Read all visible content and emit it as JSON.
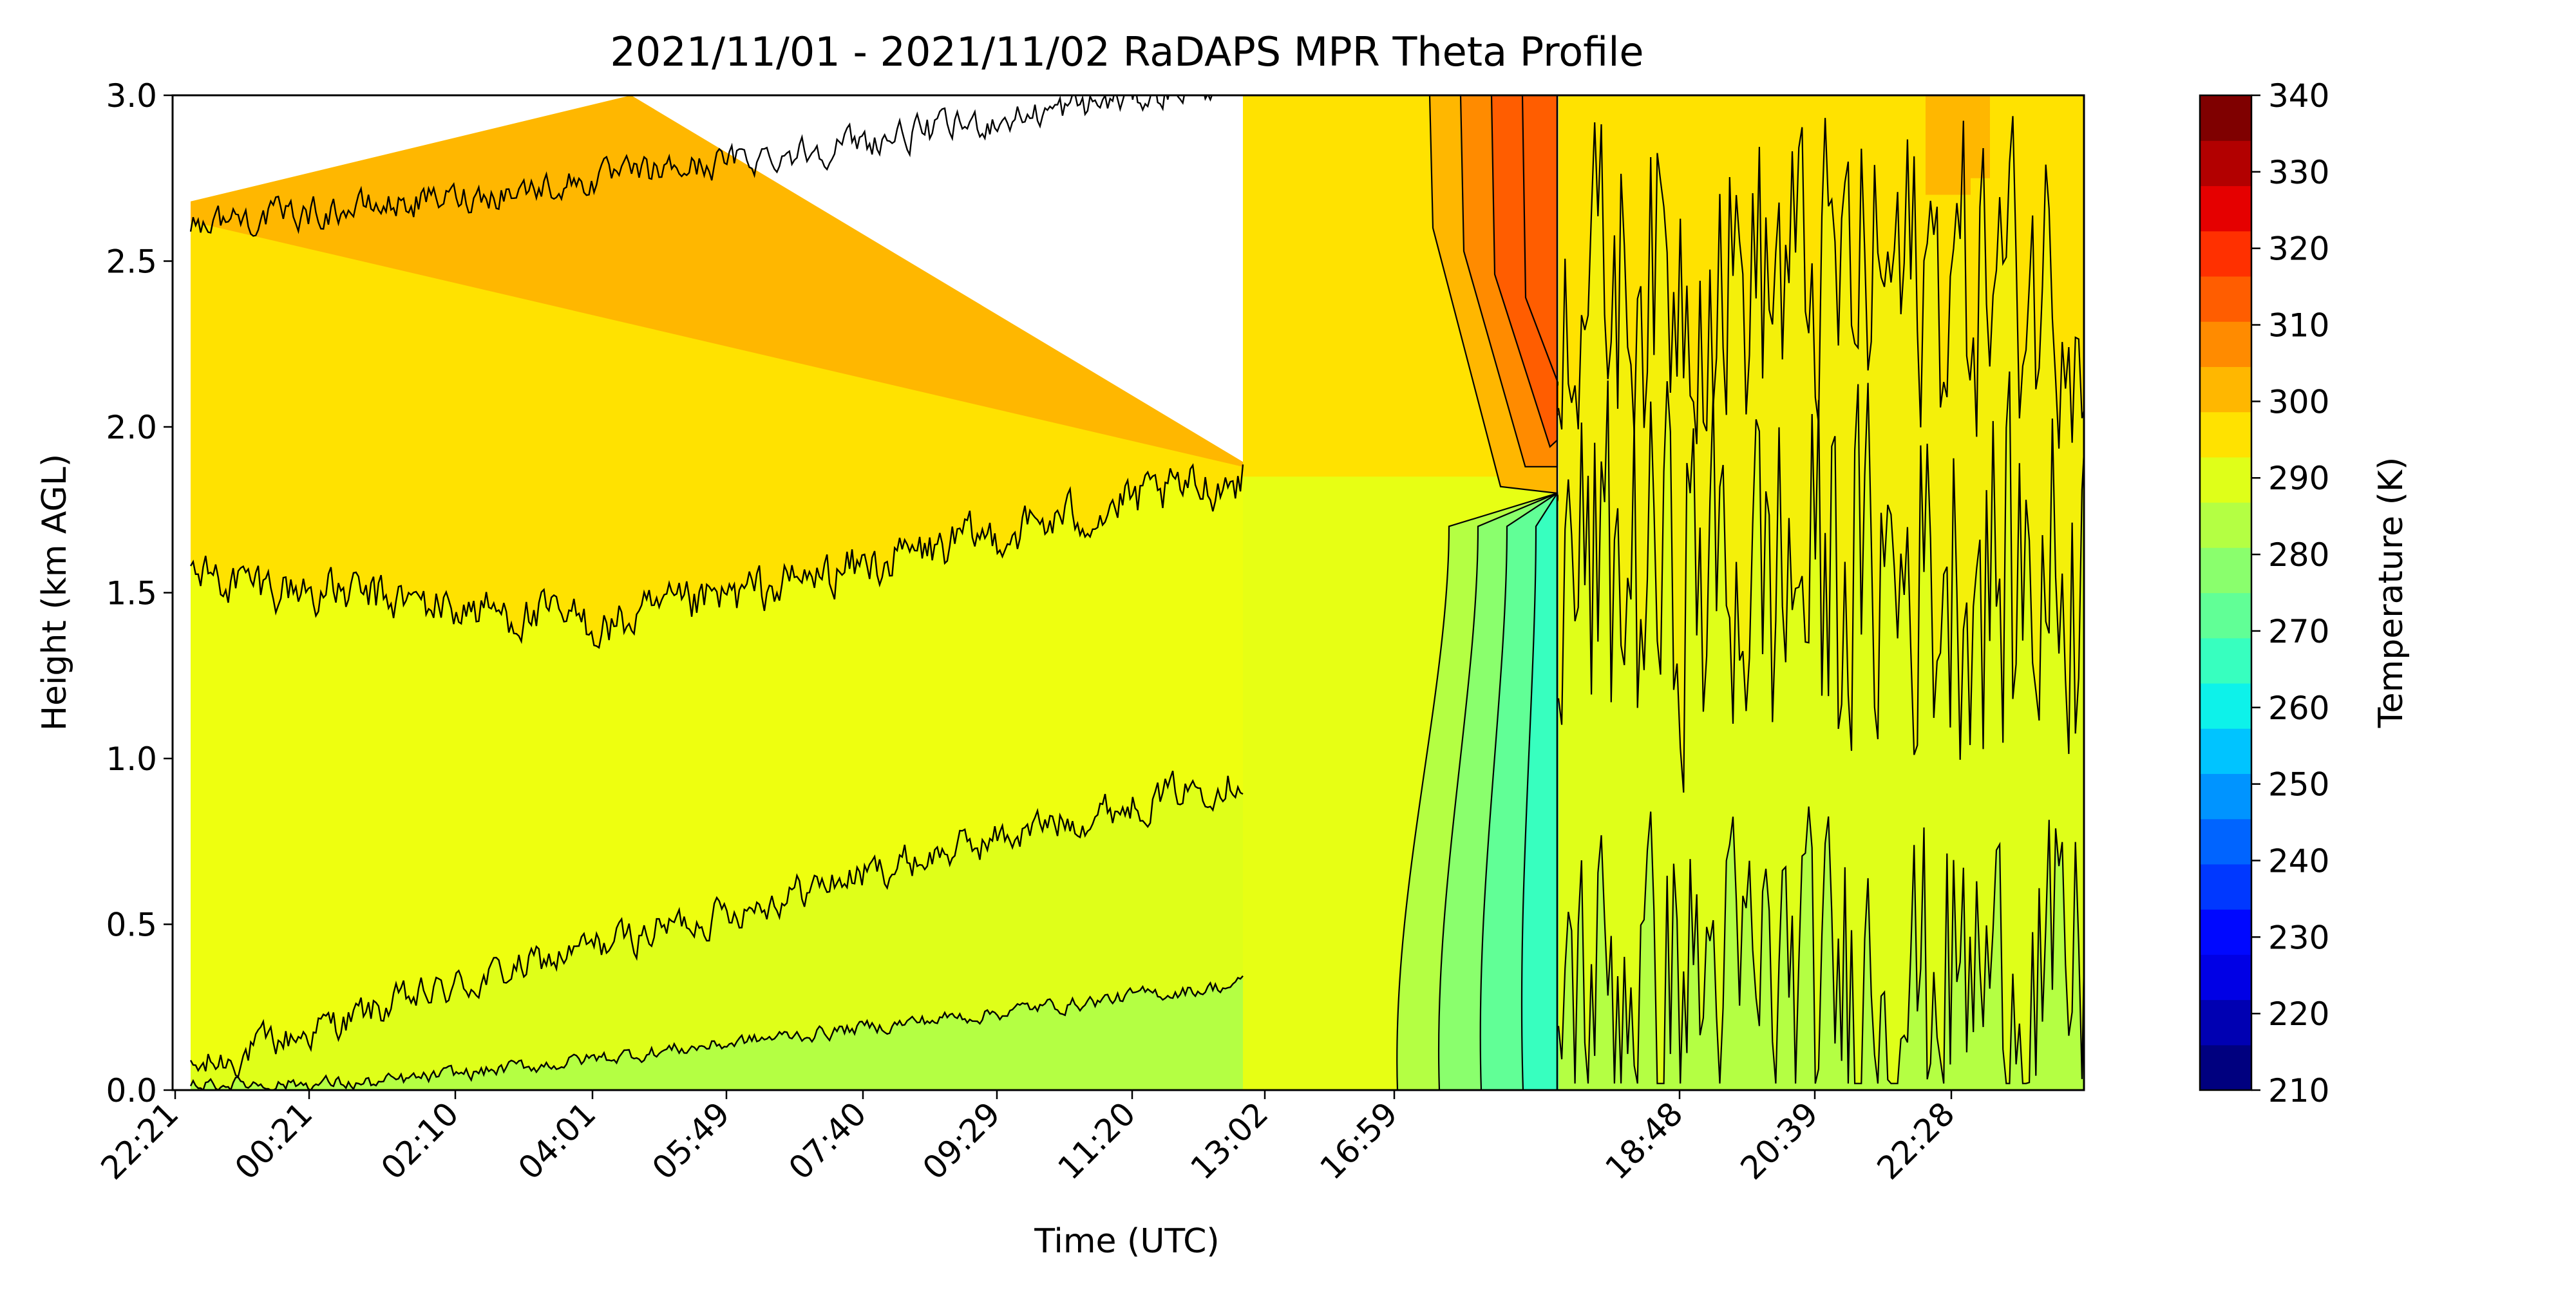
{
  "chart_data": {
    "type": "heatmap",
    "subtype": "filled-contour",
    "title": "2021/11/01 - 2021/11/02 RaDAPS MPR Theta Profile",
    "xlabel": "Time (UTC)",
    "ylabel": "Height (km AGL)",
    "x_tick_labels": [
      "22:21",
      "00:21",
      "02:10",
      "04:01",
      "05:49",
      "07:40",
      "09:29",
      "11:20",
      "13:02",
      "16:59",
      "18:48",
      "20:39",
      "22:28"
    ],
    "x_tick_rotation": 45,
    "ylim": [
      0.0,
      3.0
    ],
    "y_ticks": [
      "0.0",
      "0.5",
      "1.0",
      "1.5",
      "2.0",
      "2.5",
      "3.0"
    ],
    "colorbar": {
      "label": "Temperature (K)",
      "range": [
        210,
        340
      ],
      "level_step": 5,
      "tick_labels": [
        "210",
        "220",
        "230",
        "240",
        "250",
        "260",
        "270",
        "280",
        "290",
        "300",
        "310",
        "320",
        "330",
        "340"
      ],
      "colormap": "jet",
      "colors": [
        "#00007f",
        "#0000b2",
        "#0000e5",
        "#0008ff",
        "#0038ff",
        "#0064ff",
        "#0094ff",
        "#00c4ff",
        "#0df2ea",
        "#37ffbf",
        "#61ff96",
        "#8aff6d",
        "#b4ff43",
        "#dfff19",
        "#ffe200",
        "#ffb700",
        "#ff8b00",
        "#ff5d00",
        "#ff3000",
        "#e50000",
        "#b20000",
        "#7f0000"
      ]
    },
    "contour_levels": [
      {
        "value": 270,
        "color": "#37ffbf"
      },
      {
        "value": 275,
        "color": "#61ff96"
      },
      {
        "value": 280,
        "color": "#8aff6d"
      },
      {
        "value": 285,
        "color": "#b4ff43"
      },
      {
        "value": 290,
        "color": "#dfff19"
      },
      {
        "value": 295,
        "color": "#ffe200"
      },
      {
        "value": 300,
        "color": "#ffb700"
      },
      {
        "value": 305,
        "color": "#ff8b00"
      },
      {
        "value": 310,
        "color": "#ff5d00"
      }
    ],
    "regions": [
      {
        "x_range": [
          "22:21",
          "16:59"
        ],
        "description": "stratified: 285-290 K near surface, 290 K through mid-levels, 295 K above ~1.6 km, 300 K band above ~2.6 km"
      },
      {
        "x_range": [
          "16:59",
          "18:48"
        ],
        "description": "interpolated column: 270-285 K near surface, warm core up to ~310 K near 2.5 km"
      },
      {
        "x_range": [
          "18:48",
          "22:28"
        ],
        "description": "noisy field: 285-295 K with scattered 300 K patches aloft"
      }
    ],
    "grid": false
  }
}
